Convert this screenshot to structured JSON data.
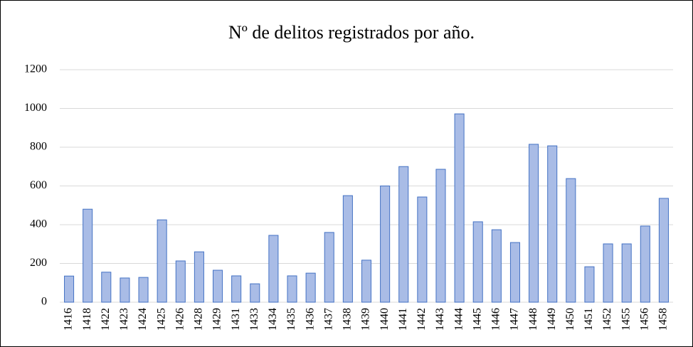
{
  "chart_data": {
    "type": "bar",
    "title": "Nº de delitos registrados por año.",
    "categories": [
      "1416",
      "1418",
      "1422",
      "1423",
      "1424",
      "1425",
      "1426",
      "1428",
      "1429",
      "1431",
      "1433",
      "1434",
      "1435",
      "1436",
      "1437",
      "1438",
      "1439",
      "1440",
      "1441",
      "1442",
      "1443",
      "1444",
      "1445",
      "1446",
      "1447",
      "1448",
      "1449",
      "1450",
      "1451",
      "1452",
      "1455",
      "1456",
      "1458"
    ],
    "values": [
      135,
      480,
      155,
      125,
      128,
      425,
      213,
      260,
      165,
      136,
      95,
      345,
      136,
      150,
      360,
      550,
      217,
      600,
      700,
      543,
      686,
      972,
      415,
      374,
      308,
      815,
      807,
      638,
      183,
      301,
      301,
      393,
      536
    ],
    "color": "#a9bce6",
    "edgecolor": "#4472c4",
    "ylim": [
      0,
      1200
    ],
    "yticks": [
      0,
      200,
      400,
      600,
      800,
      1000,
      1200
    ],
    "grid": true
  }
}
